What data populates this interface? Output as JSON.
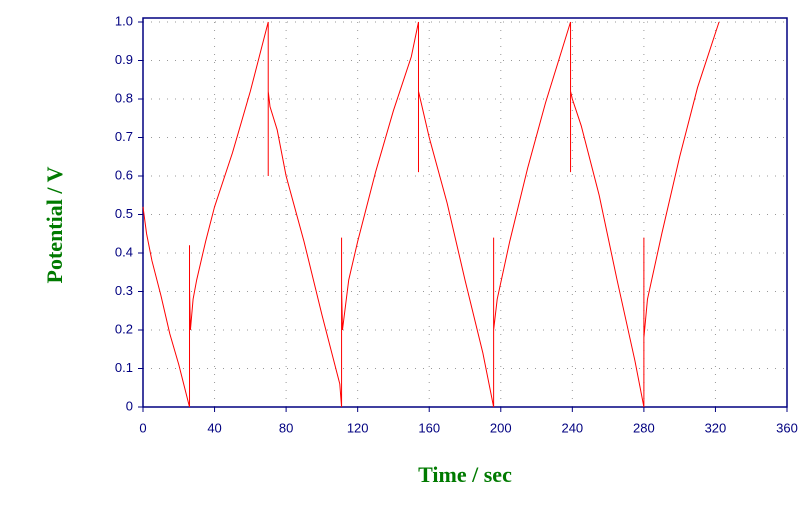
{
  "chart_data": {
    "type": "line",
    "xlabel": "Time / sec",
    "ylabel": "Potential / V",
    "xlim": [
      0,
      360
    ],
    "xticks": [
      0,
      40,
      80,
      120,
      160,
      200,
      240,
      280,
      320,
      360
    ],
    "ylim": [
      0,
      1
    ],
    "yticks": [
      0,
      0.1,
      0.2,
      0.3,
      0.4,
      0.5,
      0.6,
      0.7,
      0.8,
      0.9,
      {
        "value": 1,
        "label": "1.0"
      }
    ],
    "grid": true,
    "series": [
      {
        "name": "Potential",
        "color": "#ff0000",
        "x": [
          0,
          2,
          5,
          10,
          15,
          20,
          26,
          26,
          26,
          26.5,
          28,
          30,
          35,
          40,
          45,
          50,
          55,
          60,
          65,
          70,
          70,
          70,
          71,
          75,
          80,
          90,
          100,
          110,
          111,
          111,
          111,
          111.5,
          115,
          120,
          130,
          140,
          150,
          154,
          154,
          154,
          155,
          160,
          170,
          180,
          190,
          196,
          196,
          196,
          198,
          205,
          215,
          225,
          235,
          239,
          239,
          239,
          240,
          245,
          255,
          265,
          275,
          280,
          280,
          280,
          282,
          290,
          300,
          310,
          322
        ],
        "values": [
          0.52,
          0.45,
          0.38,
          0.29,
          0.19,
          0.11,
          0.0,
          0.42,
          0.31,
          0.2,
          0.28,
          0.33,
          0.43,
          0.52,
          0.59,
          0.66,
          0.74,
          0.82,
          0.91,
          1.0,
          0.6,
          0.82,
          0.78,
          0.72,
          0.6,
          0.43,
          0.24,
          0.06,
          0.0,
          0.44,
          0.31,
          0.2,
          0.33,
          0.43,
          0.61,
          0.77,
          0.91,
          1.0,
          0.61,
          0.82,
          0.8,
          0.7,
          0.53,
          0.33,
          0.14,
          0.0,
          0.44,
          0.2,
          0.28,
          0.43,
          0.62,
          0.79,
          0.94,
          1.0,
          0.61,
          0.82,
          0.8,
          0.73,
          0.55,
          0.33,
          0.12,
          0.0,
          0.44,
          0.18,
          0.28,
          0.45,
          0.65,
          0.83,
          1.0
        ]
      }
    ]
  }
}
